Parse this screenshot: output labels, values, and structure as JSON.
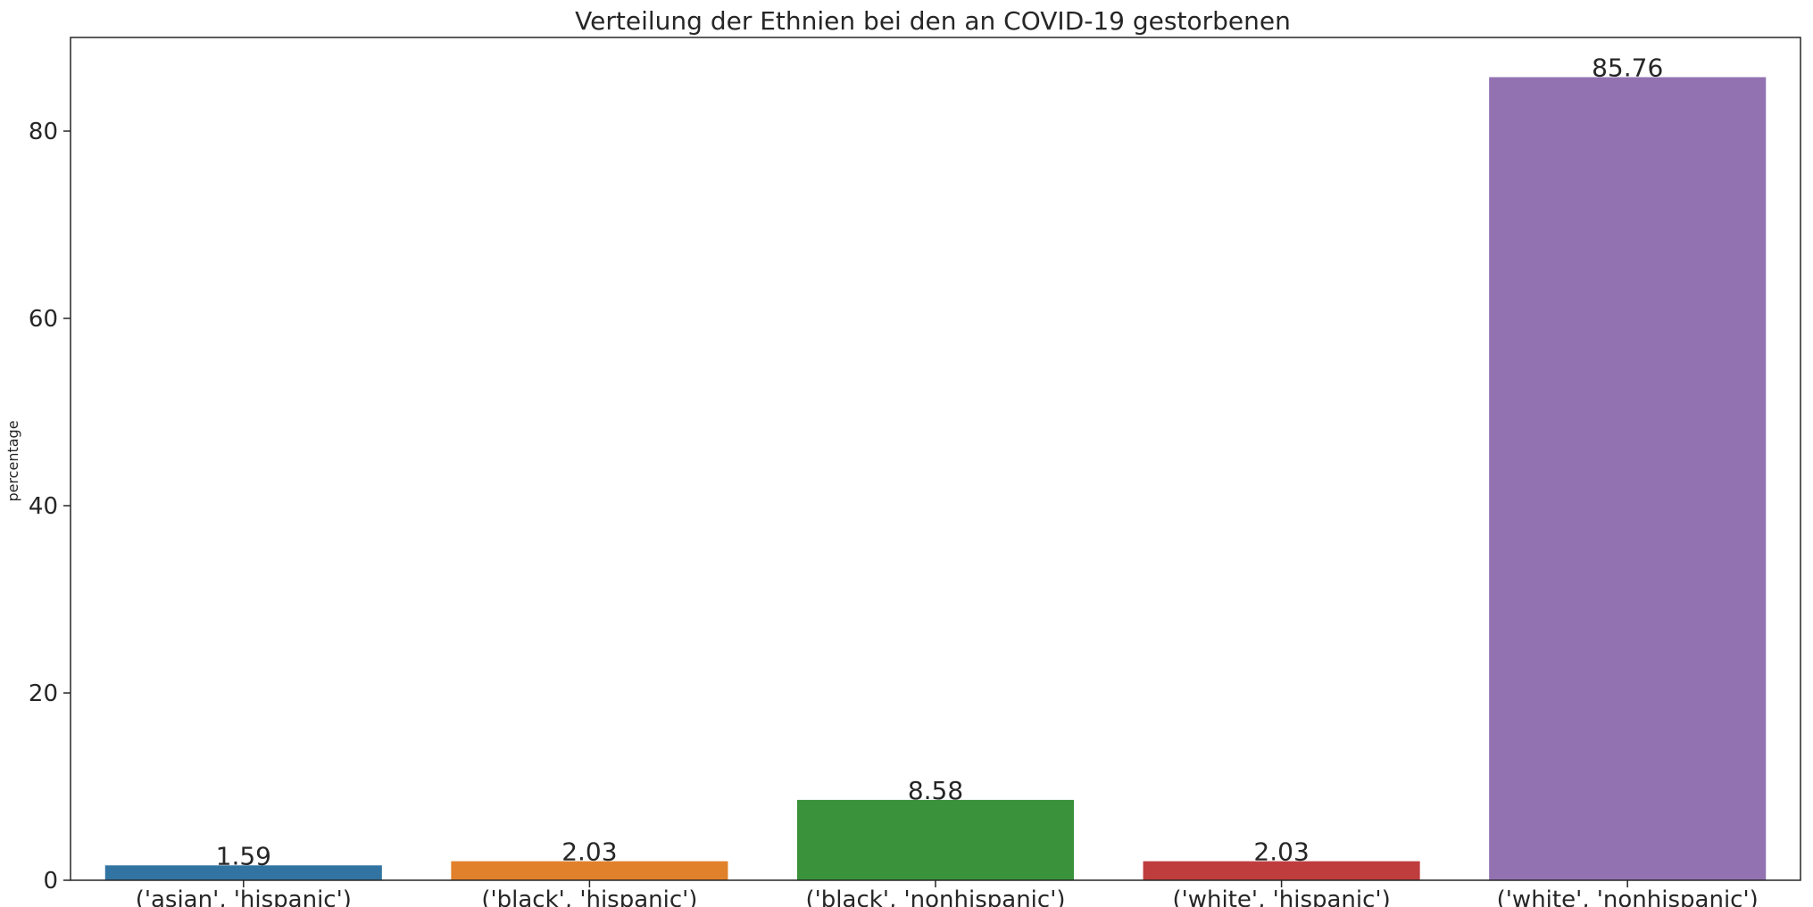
{
  "chart_data": {
    "type": "bar",
    "title": "Verteilung der Ethnien bei den an COVID-19 gestorbenen",
    "xlabel": "",
    "ylabel": "percentage",
    "categories": [
      "('asian', 'hispanic')",
      "('black', 'hispanic')",
      "('black', 'nonhispanic')",
      "('white', 'hispanic')",
      "('white', 'nonhispanic')"
    ],
    "values": [
      1.59,
      2.03,
      8.58,
      2.03,
      85.76
    ],
    "value_labels": [
      "1.59",
      "2.03",
      "8.58",
      "2.03",
      "85.76"
    ],
    "colors": [
      "#3274a1",
      "#e1812c",
      "#3a923a",
      "#c03d3e",
      "#9372b2"
    ],
    "ylim": [
      0,
      90
    ],
    "yticks": [
      0,
      20,
      40,
      60,
      80
    ],
    "grid": false,
    "legend": "none"
  }
}
